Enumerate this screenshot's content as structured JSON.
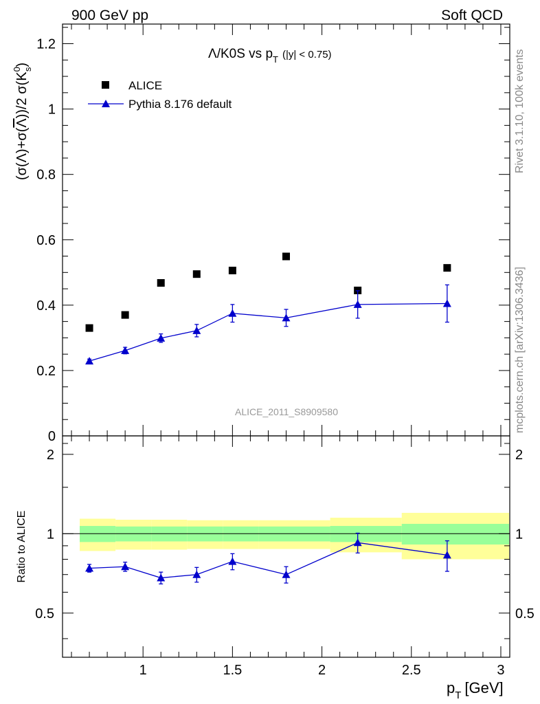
{
  "header": {
    "left": "900 GeV pp",
    "right": "Soft QCD"
  },
  "side_labels": {
    "rivet": "Rivet 3.1.10,  100k events",
    "mcplots": "mcplots.cern.ch [arXiv:1306.3436]"
  },
  "chart_data": [
    {
      "type": "scatter",
      "panel": "main",
      "title": "Λ/K0S vs p_T (|y| < 0.75)",
      "title_main": "Λ/K0S vs p",
      "title_sub": "T",
      "title_cut": "(|y| < 0.75)",
      "ylabel": "(σ(Λ)+σ(Λ̄))/2 σ(K⁰s)",
      "ylabel_main": "(σ(Λ)+σ(",
      "ylabel_bar": "Λ",
      "ylabel_end": "))/2 σ(K",
      "ylabel_sub": "s",
      "ylabel_sup": "0",
      "ylabel_close": ")",
      "xlim": [
        0.55,
        3.05
      ],
      "ylim": [
        0,
        1.26
      ],
      "yticks": [
        "0",
        "0.2",
        "0.4",
        "0.6",
        "0.8",
        "1",
        "1.2"
      ],
      "ytick_values": [
        0,
        0.2,
        0.4,
        0.6,
        0.8,
        1.0,
        1.2
      ],
      "watermark": "ALICE_2011_S8909580",
      "legend_position": "top-left",
      "series": [
        {
          "name": "ALICE",
          "marker": "square",
          "color": "#000000",
          "x": [
            0.7,
            0.9,
            1.1,
            1.3,
            1.5,
            1.8,
            2.2,
            2.7
          ],
          "values": [
            0.33,
            0.37,
            0.468,
            0.495,
            0.506,
            0.549,
            0.445,
            0.514
          ]
        },
        {
          "name": "Pythia 8.176 default",
          "marker": "triangle-line",
          "color": "#0000cc",
          "x": [
            0.7,
            0.9,
            1.1,
            1.3,
            1.5,
            1.8,
            2.2,
            2.7
          ],
          "values": [
            0.229,
            0.261,
            0.299,
            0.322,
            0.375,
            0.361,
            0.402,
            0.405
          ],
          "errors": [
            0.006,
            0.01,
            0.013,
            0.019,
            0.027,
            0.026,
            0.042,
            0.057
          ]
        }
      ]
    },
    {
      "type": "line",
      "panel": "ratio",
      "ylabel": "Ratio to ALICE",
      "xlabel": "p_T [GeV]",
      "xlabel_main": "p",
      "xlabel_sub": "T",
      "xlabel_unit": "[GeV]",
      "xlim": [
        0.55,
        3.05
      ],
      "ylim": [
        0.34,
        2.35
      ],
      "xticks": [
        "1",
        "1.5",
        "2",
        "2.5",
        "3"
      ],
      "xtick_values": [
        1,
        1.5,
        2,
        2.5,
        3
      ],
      "yticks": [
        "0.5",
        "1",
        "2"
      ],
      "ytick_values": [
        0.5,
        1,
        2
      ],
      "reference": 1,
      "bands": {
        "bins": [
          [
            0.6,
            0.8
          ],
          [
            0.8,
            1.0
          ],
          [
            1.0,
            1.2
          ],
          [
            1.2,
            1.4
          ],
          [
            1.4,
            1.6
          ],
          [
            1.6,
            2.0
          ],
          [
            2.0,
            2.4
          ],
          [
            2.4,
            3.0
          ]
        ],
        "stat": [
          [
            0.93,
            1.07
          ],
          [
            0.935,
            1.065
          ],
          [
            0.935,
            1.065
          ],
          [
            0.935,
            1.065
          ],
          [
            0.935,
            1.065
          ],
          [
            0.935,
            1.065
          ],
          [
            0.93,
            1.07
          ],
          [
            0.91,
            1.09
          ]
        ],
        "total": [
          [
            0.86,
            1.14
          ],
          [
            0.87,
            1.13
          ],
          [
            0.87,
            1.13
          ],
          [
            0.875,
            1.125
          ],
          [
            0.875,
            1.125
          ],
          [
            0.875,
            1.125
          ],
          [
            0.85,
            1.15
          ],
          [
            0.8,
            1.2
          ]
        ],
        "stat_color": "#99ff99",
        "total_color": "#ffff99"
      },
      "series": [
        {
          "name": "Pythia 8.176 default",
          "color": "#0000cc",
          "x": [
            0.7,
            0.9,
            1.1,
            1.3,
            1.5,
            1.8,
            2.2,
            2.7
          ],
          "values": [
            0.74,
            0.75,
            0.68,
            0.7,
            0.785,
            0.7,
            0.925,
            0.83
          ],
          "errors": [
            0.025,
            0.03,
            0.035,
            0.045,
            0.055,
            0.05,
            0.08,
            0.11
          ]
        }
      ]
    }
  ]
}
